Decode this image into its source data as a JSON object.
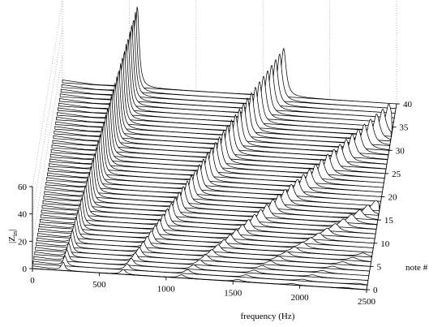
{
  "chart_data": {
    "type": "waterfall",
    "xlabel": "frequency (Hz)",
    "ylabel": "note #",
    "zlabel_main": "|Z",
    "zlabel_sub": "in",
    "zlabel_end": "|",
    "x_ticks": [
      "0",
      "500",
      "1000",
      "1500",
      "2000",
      "2500"
    ],
    "y_ticks": [
      "0",
      "5",
      "10",
      "15",
      "20",
      "25",
      "30",
      "35",
      "40"
    ],
    "z_ticks": [
      "0",
      "20",
      "40",
      "60"
    ],
    "xlim": [
      0,
      2500
    ],
    "ylim": [
      0,
      40
    ],
    "zlim": [
      0,
      60
    ],
    "notes": 41,
    "first_resonance_hz_note0": 230,
    "first_resonance_hz_note40": 560,
    "peak_height_note40": 60,
    "grid": "dotted back planes"
  }
}
